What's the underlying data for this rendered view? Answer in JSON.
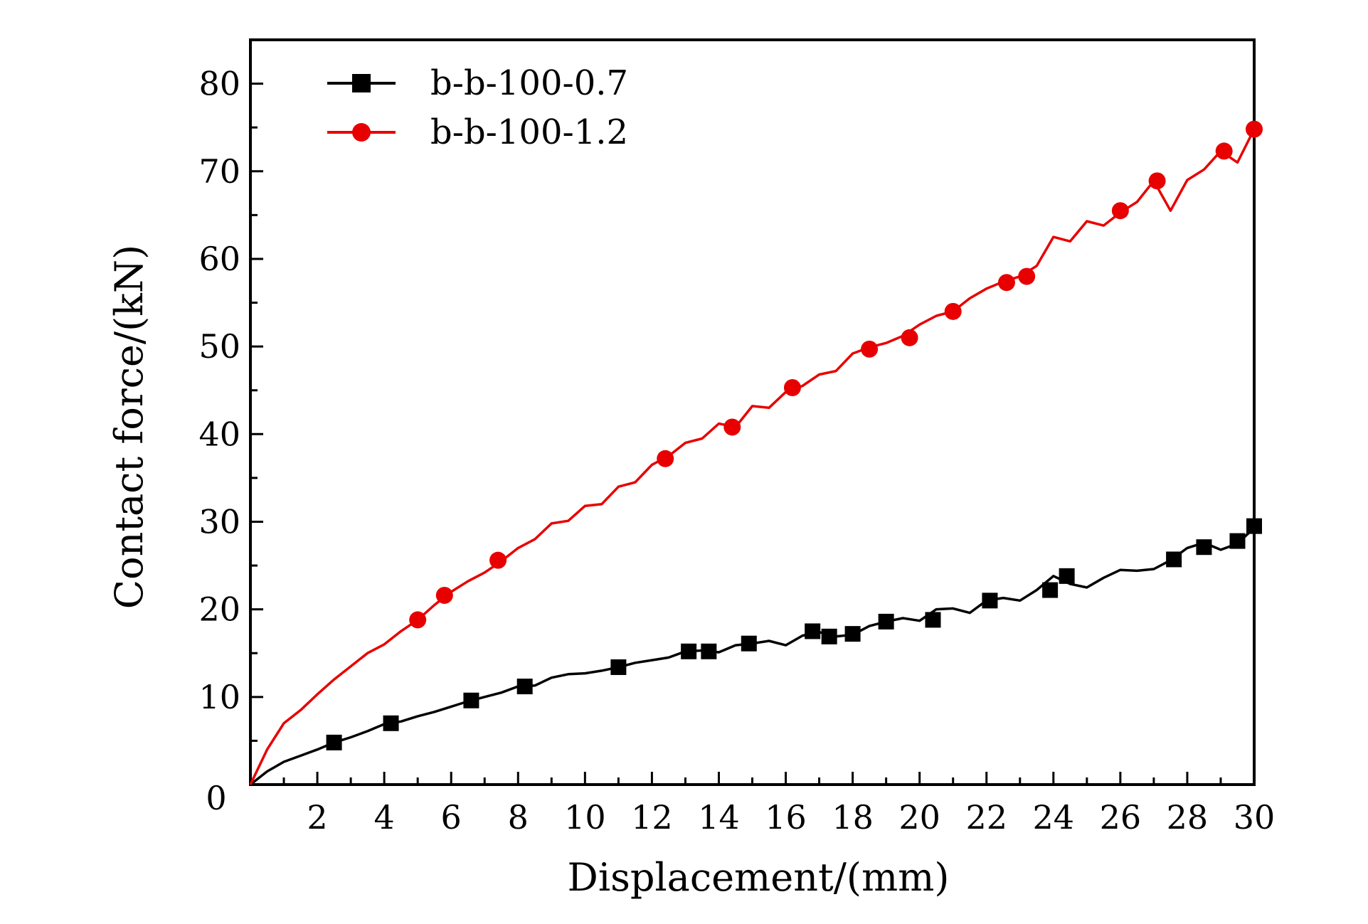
{
  "chart_data": {
    "type": "line",
    "title": "",
    "xlabel": "Displacement/(mm)",
    "ylabel": "Contact force/(kN)",
    "xlim": [
      0,
      30
    ],
    "ylim": [
      0,
      85
    ],
    "x_ticks": [
      2,
      4,
      6,
      8,
      10,
      12,
      14,
      16,
      18,
      20,
      22,
      24,
      26,
      28,
      30
    ],
    "y_ticks": [
      10,
      20,
      30,
      40,
      50,
      60,
      70,
      80
    ],
    "origin_label": "0",
    "grid": false,
    "legend_position": "top-left",
    "series": [
      {
        "name": "b-b-100-0.7",
        "color": "#000000",
        "marker": "square",
        "x": [
          0,
          0.5,
          1,
          1.5,
          2,
          2.5,
          3,
          3.5,
          4,
          4.5,
          5,
          5.5,
          6,
          6.5,
          7,
          7.5,
          8,
          8.5,
          9,
          9.5,
          10,
          10.5,
          11,
          11.5,
          12,
          12.5,
          13,
          13.5,
          14,
          14.5,
          15,
          15.5,
          16,
          16.5,
          17,
          17.5,
          18,
          18.5,
          19,
          19.5,
          20,
          20.5,
          21,
          21.5,
          22,
          22.5,
          23,
          23.5,
          24,
          24.5,
          25,
          25.5,
          26,
          26.5,
          27,
          27.5,
          28,
          28.5,
          29,
          29.5,
          30
        ],
        "y": [
          0,
          1.5,
          2.6,
          3.3,
          4.0,
          4.8,
          5.4,
          6.1,
          6.9,
          7.2,
          7.8,
          8.3,
          8.9,
          9.5,
          10.0,
          10.5,
          11.2,
          11.3,
          12.2,
          12.6,
          12.7,
          13.0,
          13.4,
          13.9,
          14.2,
          14.5,
          15.2,
          15.3,
          15.1,
          15.9,
          16.1,
          16.4,
          15.9,
          17.0,
          17.4,
          16.9,
          17.1,
          18.1,
          18.6,
          19.0,
          18.7,
          20.0,
          20.1,
          19.6,
          21.0,
          21.3,
          21.0,
          22.2,
          23.8,
          22.9,
          22.5,
          23.6,
          24.5,
          24.4,
          24.6,
          25.6,
          27.0,
          27.6,
          26.8,
          27.5,
          29.3
        ],
        "marker_x": [
          2.5,
          4.2,
          6.6,
          8.2,
          11.0,
          13.1,
          13.7,
          14.9,
          16.8,
          17.3,
          18.0,
          19.0,
          20.4,
          22.1,
          23.9,
          24.4,
          27.6,
          28.5,
          29.5,
          30.0
        ],
        "marker_y": [
          4.8,
          7.0,
          9.6,
          11.2,
          13.4,
          15.2,
          15.2,
          16.1,
          17.5,
          16.9,
          17.2,
          18.6,
          18.8,
          21.0,
          22.2,
          23.8,
          25.7,
          27.1,
          27.8,
          29.5
        ]
      },
      {
        "name": "b-b-100-1.2",
        "color": "#e80000",
        "marker": "circle",
        "x": [
          0,
          0.5,
          1,
          1.5,
          2,
          2.5,
          3,
          3.5,
          4,
          4.5,
          5,
          5.5,
          6,
          6.5,
          7,
          7.5,
          8,
          8.5,
          9,
          9.5,
          10,
          10.5,
          11,
          11.5,
          12,
          12.5,
          13,
          13.5,
          14,
          14.5,
          15,
          15.5,
          16,
          16.5,
          17,
          17.5,
          18,
          18.5,
          19,
          19.5,
          20,
          20.5,
          21,
          21.5,
          22,
          22.5,
          23,
          23.5,
          24,
          24.5,
          25,
          25.5,
          26,
          26.5,
          27,
          27.5,
          28,
          28.5,
          29,
          29.5,
          30
        ],
        "y": [
          0,
          4.0,
          7.0,
          8.5,
          10.3,
          12.0,
          13.5,
          15.0,
          16.0,
          17.5,
          18.8,
          20.5,
          22.0,
          23.2,
          24.2,
          25.5,
          27.0,
          28.0,
          29.8,
          30.1,
          31.8,
          32.0,
          34.0,
          34.5,
          36.5,
          37.5,
          39.0,
          39.5,
          41.2,
          40.8,
          43.2,
          43.0,
          44.8,
          45.5,
          46.8,
          47.2,
          49.2,
          49.9,
          50.4,
          51.2,
          52.5,
          53.5,
          54.0,
          55.5,
          56.6,
          57.4,
          58.0,
          59.2,
          62.5,
          62.0,
          64.3,
          63.8,
          65.3,
          66.5,
          68.9,
          65.5,
          69.0,
          70.2,
          72.3,
          71.0,
          74.8
        ],
        "marker_x": [
          5.0,
          5.8,
          7.4,
          12.4,
          14.4,
          16.2,
          18.5,
          19.7,
          21.0,
          22.6,
          23.2,
          26.0,
          27.1,
          29.1,
          30.0
        ],
        "marker_y": [
          18.8,
          21.6,
          25.6,
          37.2,
          40.8,
          45.3,
          49.7,
          51.0,
          54.0,
          57.3,
          58.0,
          65.5,
          68.9,
          72.3,
          74.8
        ]
      }
    ]
  }
}
